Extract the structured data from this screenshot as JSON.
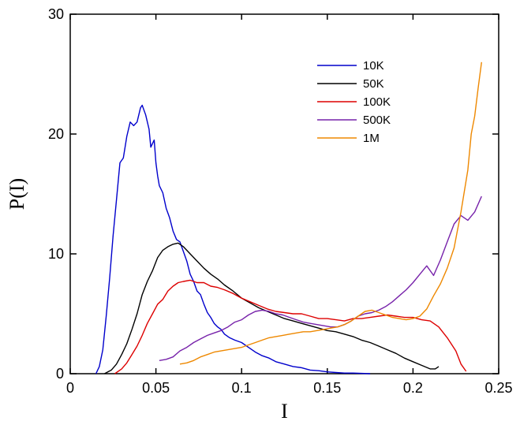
{
  "chart_data": {
    "type": "line",
    "title": "",
    "xlabel": "I",
    "ylabel": "P(I)",
    "xlim": [
      0,
      0.25
    ],
    "ylim": [
      0,
      30
    ],
    "x_ticks": [
      "0",
      "0.05",
      "0.1",
      "0.15",
      "0.2",
      "0.25"
    ],
    "y_ticks": [
      "0",
      "10",
      "20",
      "30"
    ],
    "grid": false,
    "legend_position": "top-right",
    "series": [
      {
        "name": "10K",
        "color": "#0000cc",
        "points": [
          [
            0.015,
            0.0
          ],
          [
            0.017,
            0.6
          ],
          [
            0.019,
            2.0
          ],
          [
            0.021,
            4.8
          ],
          [
            0.023,
            8.0
          ],
          [
            0.025,
            11.5
          ],
          [
            0.027,
            14.5
          ],
          [
            0.029,
            17.6
          ],
          [
            0.031,
            18.0
          ],
          [
            0.033,
            19.8
          ],
          [
            0.035,
            21.0
          ],
          [
            0.037,
            20.7
          ],
          [
            0.039,
            21.0
          ],
          [
            0.041,
            22.2
          ],
          [
            0.042,
            22.4
          ],
          [
            0.044,
            21.6
          ],
          [
            0.046,
            20.4
          ],
          [
            0.047,
            18.9
          ],
          [
            0.049,
            19.5
          ],
          [
            0.05,
            17.6
          ],
          [
            0.051,
            16.5
          ],
          [
            0.052,
            15.7
          ],
          [
            0.054,
            15.1
          ],
          [
            0.056,
            13.8
          ],
          [
            0.058,
            13.0
          ],
          [
            0.06,
            11.9
          ],
          [
            0.062,
            11.2
          ],
          [
            0.064,
            11.0
          ],
          [
            0.066,
            10.2
          ],
          [
            0.068,
            9.4
          ],
          [
            0.07,
            8.3
          ],
          [
            0.072,
            7.7
          ],
          [
            0.074,
            6.9
          ],
          [
            0.076,
            6.6
          ],
          [
            0.078,
            5.8
          ],
          [
            0.08,
            5.1
          ],
          [
            0.082,
            4.7
          ],
          [
            0.084,
            4.2
          ],
          [
            0.086,
            3.9
          ],
          [
            0.088,
            3.7
          ],
          [
            0.09,
            3.3
          ],
          [
            0.093,
            3.0
          ],
          [
            0.096,
            2.8
          ],
          [
            0.1,
            2.6
          ],
          [
            0.104,
            2.2
          ],
          [
            0.108,
            1.8
          ],
          [
            0.112,
            1.5
          ],
          [
            0.116,
            1.3
          ],
          [
            0.12,
            1.0
          ],
          [
            0.125,
            0.8
          ],
          [
            0.13,
            0.6
          ],
          [
            0.135,
            0.5
          ],
          [
            0.14,
            0.3
          ],
          [
            0.145,
            0.25
          ],
          [
            0.15,
            0.15
          ],
          [
            0.155,
            0.1
          ],
          [
            0.16,
            0.05
          ],
          [
            0.165,
            0.05
          ],
          [
            0.175,
            0.0
          ]
        ]
      },
      {
        "name": "50K",
        "color": "#000000",
        "points": [
          [
            0.02,
            0.0
          ],
          [
            0.024,
            0.3
          ],
          [
            0.027,
            0.8
          ],
          [
            0.03,
            1.6
          ],
          [
            0.033,
            2.5
          ],
          [
            0.036,
            3.7
          ],
          [
            0.039,
            5.0
          ],
          [
            0.042,
            6.6
          ],
          [
            0.045,
            7.7
          ],
          [
            0.048,
            8.6
          ],
          [
            0.051,
            9.7
          ],
          [
            0.054,
            10.3
          ],
          [
            0.057,
            10.6
          ],
          [
            0.06,
            10.8
          ],
          [
            0.063,
            10.9
          ],
          [
            0.066,
            10.6
          ],
          [
            0.07,
            10.0
          ],
          [
            0.074,
            9.4
          ],
          [
            0.078,
            8.8
          ],
          [
            0.082,
            8.3
          ],
          [
            0.086,
            7.9
          ],
          [
            0.09,
            7.4
          ],
          [
            0.095,
            6.9
          ],
          [
            0.1,
            6.3
          ],
          [
            0.105,
            5.9
          ],
          [
            0.11,
            5.5
          ],
          [
            0.115,
            5.2
          ],
          [
            0.12,
            4.9
          ],
          [
            0.125,
            4.6
          ],
          [
            0.13,
            4.4
          ],
          [
            0.135,
            4.2
          ],
          [
            0.14,
            4.0
          ],
          [
            0.145,
            3.8
          ],
          [
            0.15,
            3.6
          ],
          [
            0.155,
            3.5
          ],
          [
            0.16,
            3.3
          ],
          [
            0.165,
            3.1
          ],
          [
            0.17,
            2.8
          ],
          [
            0.175,
            2.6
          ],
          [
            0.18,
            2.3
          ],
          [
            0.185,
            2.0
          ],
          [
            0.19,
            1.7
          ],
          [
            0.195,
            1.3
          ],
          [
            0.2,
            1.0
          ],
          [
            0.205,
            0.7
          ],
          [
            0.21,
            0.4
          ],
          [
            0.213,
            0.4
          ],
          [
            0.215,
            0.6
          ]
        ]
      },
      {
        "name": "100K",
        "color": "#dd0000",
        "points": [
          [
            0.026,
            0.0
          ],
          [
            0.03,
            0.4
          ],
          [
            0.033,
            0.9
          ],
          [
            0.036,
            1.6
          ],
          [
            0.039,
            2.3
          ],
          [
            0.042,
            3.2
          ],
          [
            0.045,
            4.2
          ],
          [
            0.048,
            5.0
          ],
          [
            0.051,
            5.8
          ],
          [
            0.054,
            6.2
          ],
          [
            0.057,
            6.9
          ],
          [
            0.06,
            7.3
          ],
          [
            0.063,
            7.6
          ],
          [
            0.066,
            7.7
          ],
          [
            0.07,
            7.8
          ],
          [
            0.074,
            7.6
          ],
          [
            0.078,
            7.6
          ],
          [
            0.082,
            7.3
          ],
          [
            0.086,
            7.2
          ],
          [
            0.09,
            7.0
          ],
          [
            0.095,
            6.7
          ],
          [
            0.1,
            6.3
          ],
          [
            0.105,
            6.0
          ],
          [
            0.11,
            5.7
          ],
          [
            0.115,
            5.4
          ],
          [
            0.12,
            5.2
          ],
          [
            0.125,
            5.1
          ],
          [
            0.13,
            5.0
          ],
          [
            0.135,
            5.0
          ],
          [
            0.14,
            4.8
          ],
          [
            0.145,
            4.6
          ],
          [
            0.15,
            4.6
          ],
          [
            0.155,
            4.5
          ],
          [
            0.16,
            4.4
          ],
          [
            0.165,
            4.6
          ],
          [
            0.17,
            4.6
          ],
          [
            0.175,
            4.7
          ],
          [
            0.18,
            4.8
          ],
          [
            0.185,
            4.9
          ],
          [
            0.19,
            4.8
          ],
          [
            0.195,
            4.7
          ],
          [
            0.2,
            4.7
          ],
          [
            0.205,
            4.5
          ],
          [
            0.21,
            4.4
          ],
          [
            0.215,
            3.9
          ],
          [
            0.22,
            3.0
          ],
          [
            0.225,
            1.9
          ],
          [
            0.228,
            0.8
          ],
          [
            0.231,
            0.2
          ]
        ]
      },
      {
        "name": "500K",
        "color": "#7722aa",
        "points": [
          [
            0.052,
            1.1
          ],
          [
            0.056,
            1.2
          ],
          [
            0.06,
            1.4
          ],
          [
            0.064,
            1.9
          ],
          [
            0.068,
            2.2
          ],
          [
            0.072,
            2.6
          ],
          [
            0.076,
            2.9
          ],
          [
            0.08,
            3.2
          ],
          [
            0.084,
            3.4
          ],
          [
            0.088,
            3.6
          ],
          [
            0.092,
            3.9
          ],
          [
            0.096,
            4.3
          ],
          [
            0.1,
            4.5
          ],
          [
            0.104,
            4.9
          ],
          [
            0.108,
            5.2
          ],
          [
            0.112,
            5.3
          ],
          [
            0.116,
            5.2
          ],
          [
            0.12,
            5.0
          ],
          [
            0.124,
            4.9
          ],
          [
            0.128,
            4.7
          ],
          [
            0.132,
            4.5
          ],
          [
            0.136,
            4.3
          ],
          [
            0.14,
            4.2
          ],
          [
            0.144,
            4.1
          ],
          [
            0.148,
            4.0
          ],
          [
            0.152,
            3.9
          ],
          [
            0.156,
            3.9
          ],
          [
            0.16,
            4.1
          ],
          [
            0.164,
            4.4
          ],
          [
            0.168,
            4.8
          ],
          [
            0.172,
            5.0
          ],
          [
            0.176,
            5.1
          ],
          [
            0.18,
            5.3
          ],
          [
            0.184,
            5.6
          ],
          [
            0.188,
            6.0
          ],
          [
            0.192,
            6.5
          ],
          [
            0.196,
            7.0
          ],
          [
            0.2,
            7.6
          ],
          [
            0.204,
            8.3
          ],
          [
            0.208,
            9.0
          ],
          [
            0.212,
            8.2
          ],
          [
            0.216,
            9.5
          ],
          [
            0.22,
            11.0
          ],
          [
            0.224,
            12.5
          ],
          [
            0.228,
            13.2
          ],
          [
            0.232,
            12.8
          ],
          [
            0.236,
            13.5
          ],
          [
            0.24,
            14.8
          ]
        ]
      },
      {
        "name": "1M",
        "color": "#ee8800",
        "points": [
          [
            0.064,
            0.8
          ],
          [
            0.068,
            0.9
          ],
          [
            0.072,
            1.1
          ],
          [
            0.076,
            1.4
          ],
          [
            0.08,
            1.6
          ],
          [
            0.084,
            1.8
          ],
          [
            0.088,
            1.9
          ],
          [
            0.092,
            2.0
          ],
          [
            0.096,
            2.1
          ],
          [
            0.1,
            2.2
          ],
          [
            0.104,
            2.4
          ],
          [
            0.108,
            2.6
          ],
          [
            0.112,
            2.8
          ],
          [
            0.116,
            3.0
          ],
          [
            0.12,
            3.1
          ],
          [
            0.124,
            3.2
          ],
          [
            0.128,
            3.3
          ],
          [
            0.132,
            3.4
          ],
          [
            0.136,
            3.5
          ],
          [
            0.14,
            3.5
          ],
          [
            0.144,
            3.6
          ],
          [
            0.148,
            3.7
          ],
          [
            0.152,
            3.8
          ],
          [
            0.156,
            3.9
          ],
          [
            0.16,
            4.1
          ],
          [
            0.164,
            4.4
          ],
          [
            0.168,
            4.8
          ],
          [
            0.172,
            5.2
          ],
          [
            0.176,
            5.3
          ],
          [
            0.18,
            5.1
          ],
          [
            0.184,
            4.9
          ],
          [
            0.188,
            4.7
          ],
          [
            0.192,
            4.6
          ],
          [
            0.196,
            4.5
          ],
          [
            0.2,
            4.6
          ],
          [
            0.204,
            4.8
          ],
          [
            0.208,
            5.4
          ],
          [
            0.212,
            6.5
          ],
          [
            0.216,
            7.5
          ],
          [
            0.22,
            8.8
          ],
          [
            0.224,
            10.5
          ],
          [
            0.228,
            13.5
          ],
          [
            0.232,
            17.0
          ],
          [
            0.234,
            20.0
          ],
          [
            0.236,
            21.5
          ],
          [
            0.238,
            23.8
          ],
          [
            0.24,
            26.0
          ]
        ]
      }
    ]
  }
}
